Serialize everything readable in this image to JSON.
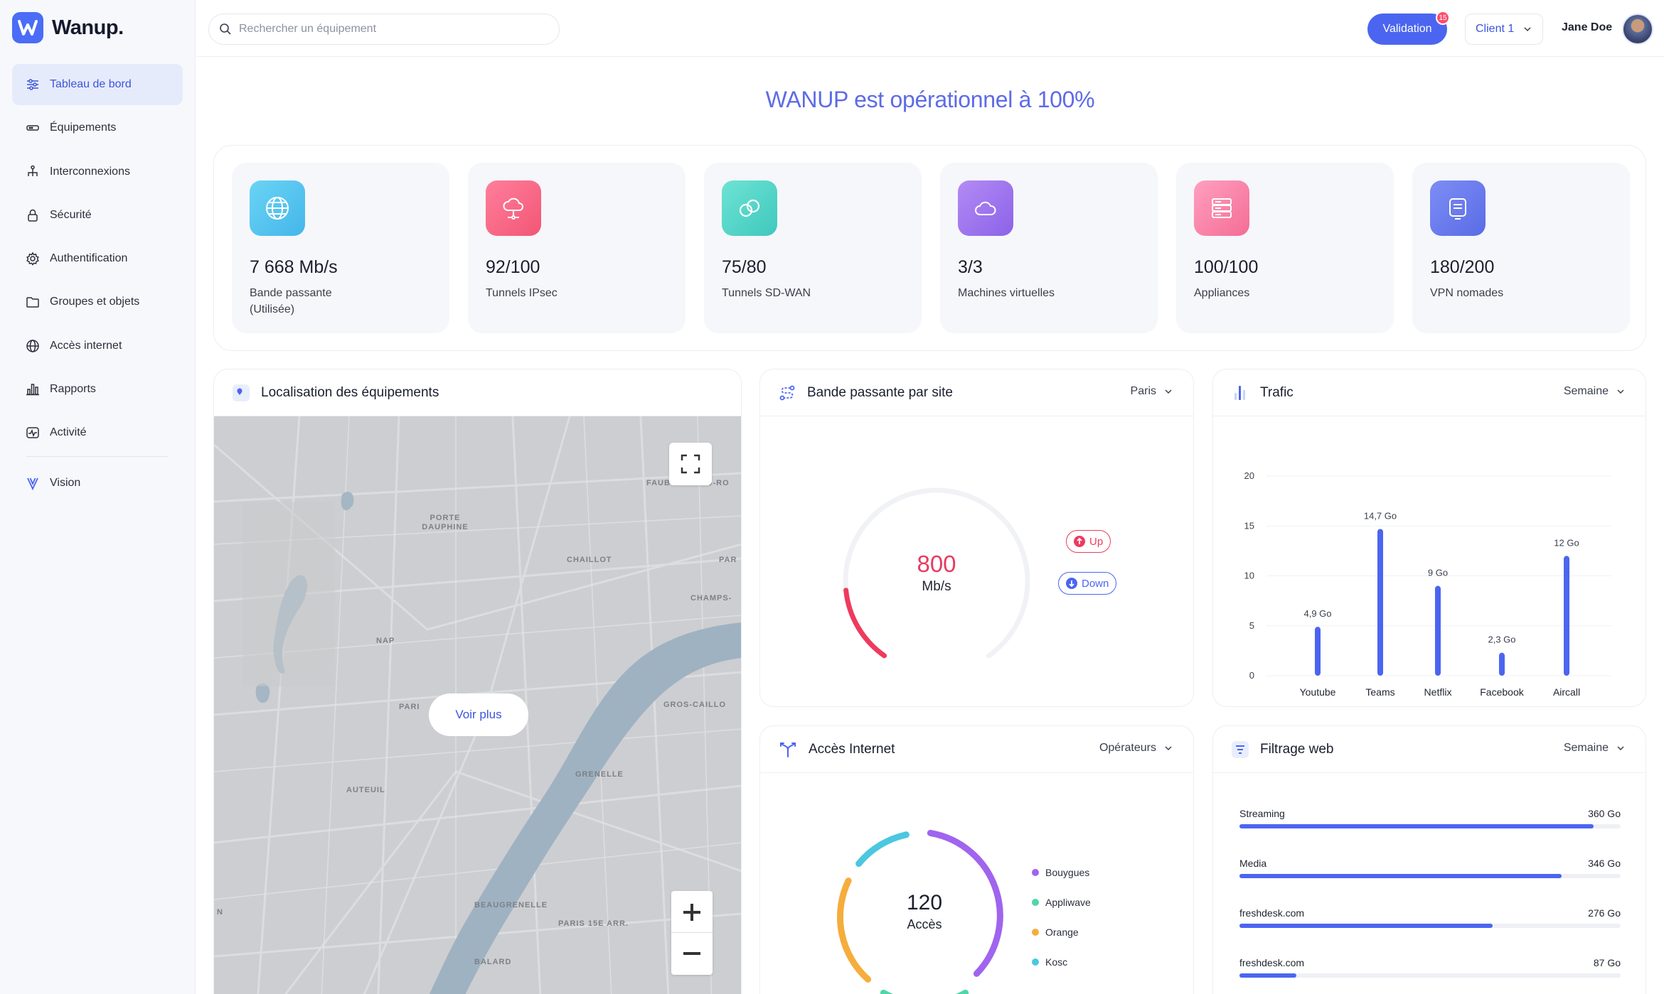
{
  "app": {
    "name": "Wanup."
  },
  "sidebar": {
    "items": [
      {
        "label": "Tableau de bord",
        "icon": "sliders-icon",
        "active": true
      },
      {
        "label": "Équipements",
        "icon": "device-icon"
      },
      {
        "label": "Interconnexions",
        "icon": "network-icon"
      },
      {
        "label": "Sécurité",
        "icon": "lock-icon"
      },
      {
        "label": "Authentification",
        "icon": "gear-icon"
      },
      {
        "label": "Groupes et objets",
        "icon": "folder-icon"
      },
      {
        "label": "Accès internet",
        "icon": "globe-icon"
      },
      {
        "label": "Rapports",
        "icon": "bar-chart-icon"
      },
      {
        "label": "Activité",
        "icon": "activity-icon"
      }
    ],
    "vision": {
      "label": "Vision",
      "icon": "vision-icon"
    }
  },
  "header": {
    "search_placeholder": "Rechercher un équipement",
    "validation_label": "Validation",
    "validation_badge": "15",
    "client_label": "Client 1",
    "user_name": "Jane Doe"
  },
  "headline": "WANUP est opérationnel à 100%",
  "stats": [
    {
      "value": "7 668 Mb/s",
      "label": "Bande passante (Utilisée)",
      "icon": "globe-icon",
      "color": "#5ec8ef"
    },
    {
      "value": "92/100",
      "label": "Tunnels IPsec",
      "icon": "cloud-network-icon",
      "color": "#ff6b8b"
    },
    {
      "value": "75/80",
      "label": "Tunnels SD-WAN",
      "icon": "link-icon",
      "color": "#4fd6c8"
    },
    {
      "value": "3/3",
      "label": "Machines virtuelles",
      "icon": "cloud-icon",
      "color": "#a275f0"
    },
    {
      "value": "100/100",
      "label": "Appliances",
      "icon": "server-icon",
      "color": "#ff7fa4"
    },
    {
      "value": "180/200",
      "label": "VPN nomades",
      "icon": "screen-icon",
      "color": "#6b7cf2"
    }
  ],
  "map_card": {
    "title": "Localisation des équipements",
    "voir_plus": "Voir plus",
    "labels": [
      "PORTE DAUPHINE",
      "CHAILLOT",
      "PAR",
      "CHAMPS-",
      "FAUBOURG-DU-RO",
      "NAP",
      "PARI",
      "GROS-CAILLO",
      "GRENELLE",
      "AUTEUIL",
      "BEAUGRENELLE",
      "PARIS 15E ARR.",
      "BALARD",
      "N"
    ]
  },
  "bandwidth_card": {
    "title": "Bande passante par site",
    "selector": "Paris",
    "value": "800",
    "unit": "Mb/s",
    "up_label": "Up",
    "down_label": "Down",
    "gauge_fraction": 0.17,
    "gauge_color": "#ef3a5d"
  },
  "traffic_card": {
    "title": "Trafic",
    "selector": "Semaine"
  },
  "internet_card": {
    "title": "Accès Internet",
    "selector": "Opérateurs",
    "value": "120",
    "unit": "Accès",
    "legend": [
      {
        "name": "Bouygues",
        "color": "#a064ee"
      },
      {
        "name": "Appliwave",
        "color": "#4fd6a8"
      },
      {
        "name": "Orange",
        "color": "#f5ad3c"
      },
      {
        "name": "Kosc",
        "color": "#4cc7e0"
      }
    ]
  },
  "filter_card": {
    "title": "Filtrage web",
    "selector": "Semaine",
    "rows": [
      {
        "name": "Streaming",
        "value": "360 Go",
        "fraction": 0.93
      },
      {
        "name": "Media",
        "value": "346 Go",
        "fraction": 0.845
      },
      {
        "name": "freshdesk.com",
        "value": "276 Go",
        "fraction": 0.665
      },
      {
        "name": "freshdesk.com",
        "value": "87 Go",
        "fraction": 0.15
      }
    ]
  },
  "chart_data": {
    "type": "bar",
    "categories": [
      "Youtube",
      "Teams",
      "Netflix",
      "Facebook",
      "Aircall"
    ],
    "values": [
      4.9,
      14.7,
      9,
      2.3,
      12
    ],
    "data_labels": [
      "4,9 Go",
      "14,7 Go",
      "9 Go",
      "2,3 Go",
      "12 Go"
    ],
    "yticks": [
      "0",
      "5",
      "10",
      "15",
      "20"
    ],
    "ylim": [
      0,
      20
    ],
    "color": "#4b65f0",
    "grid": true
  }
}
